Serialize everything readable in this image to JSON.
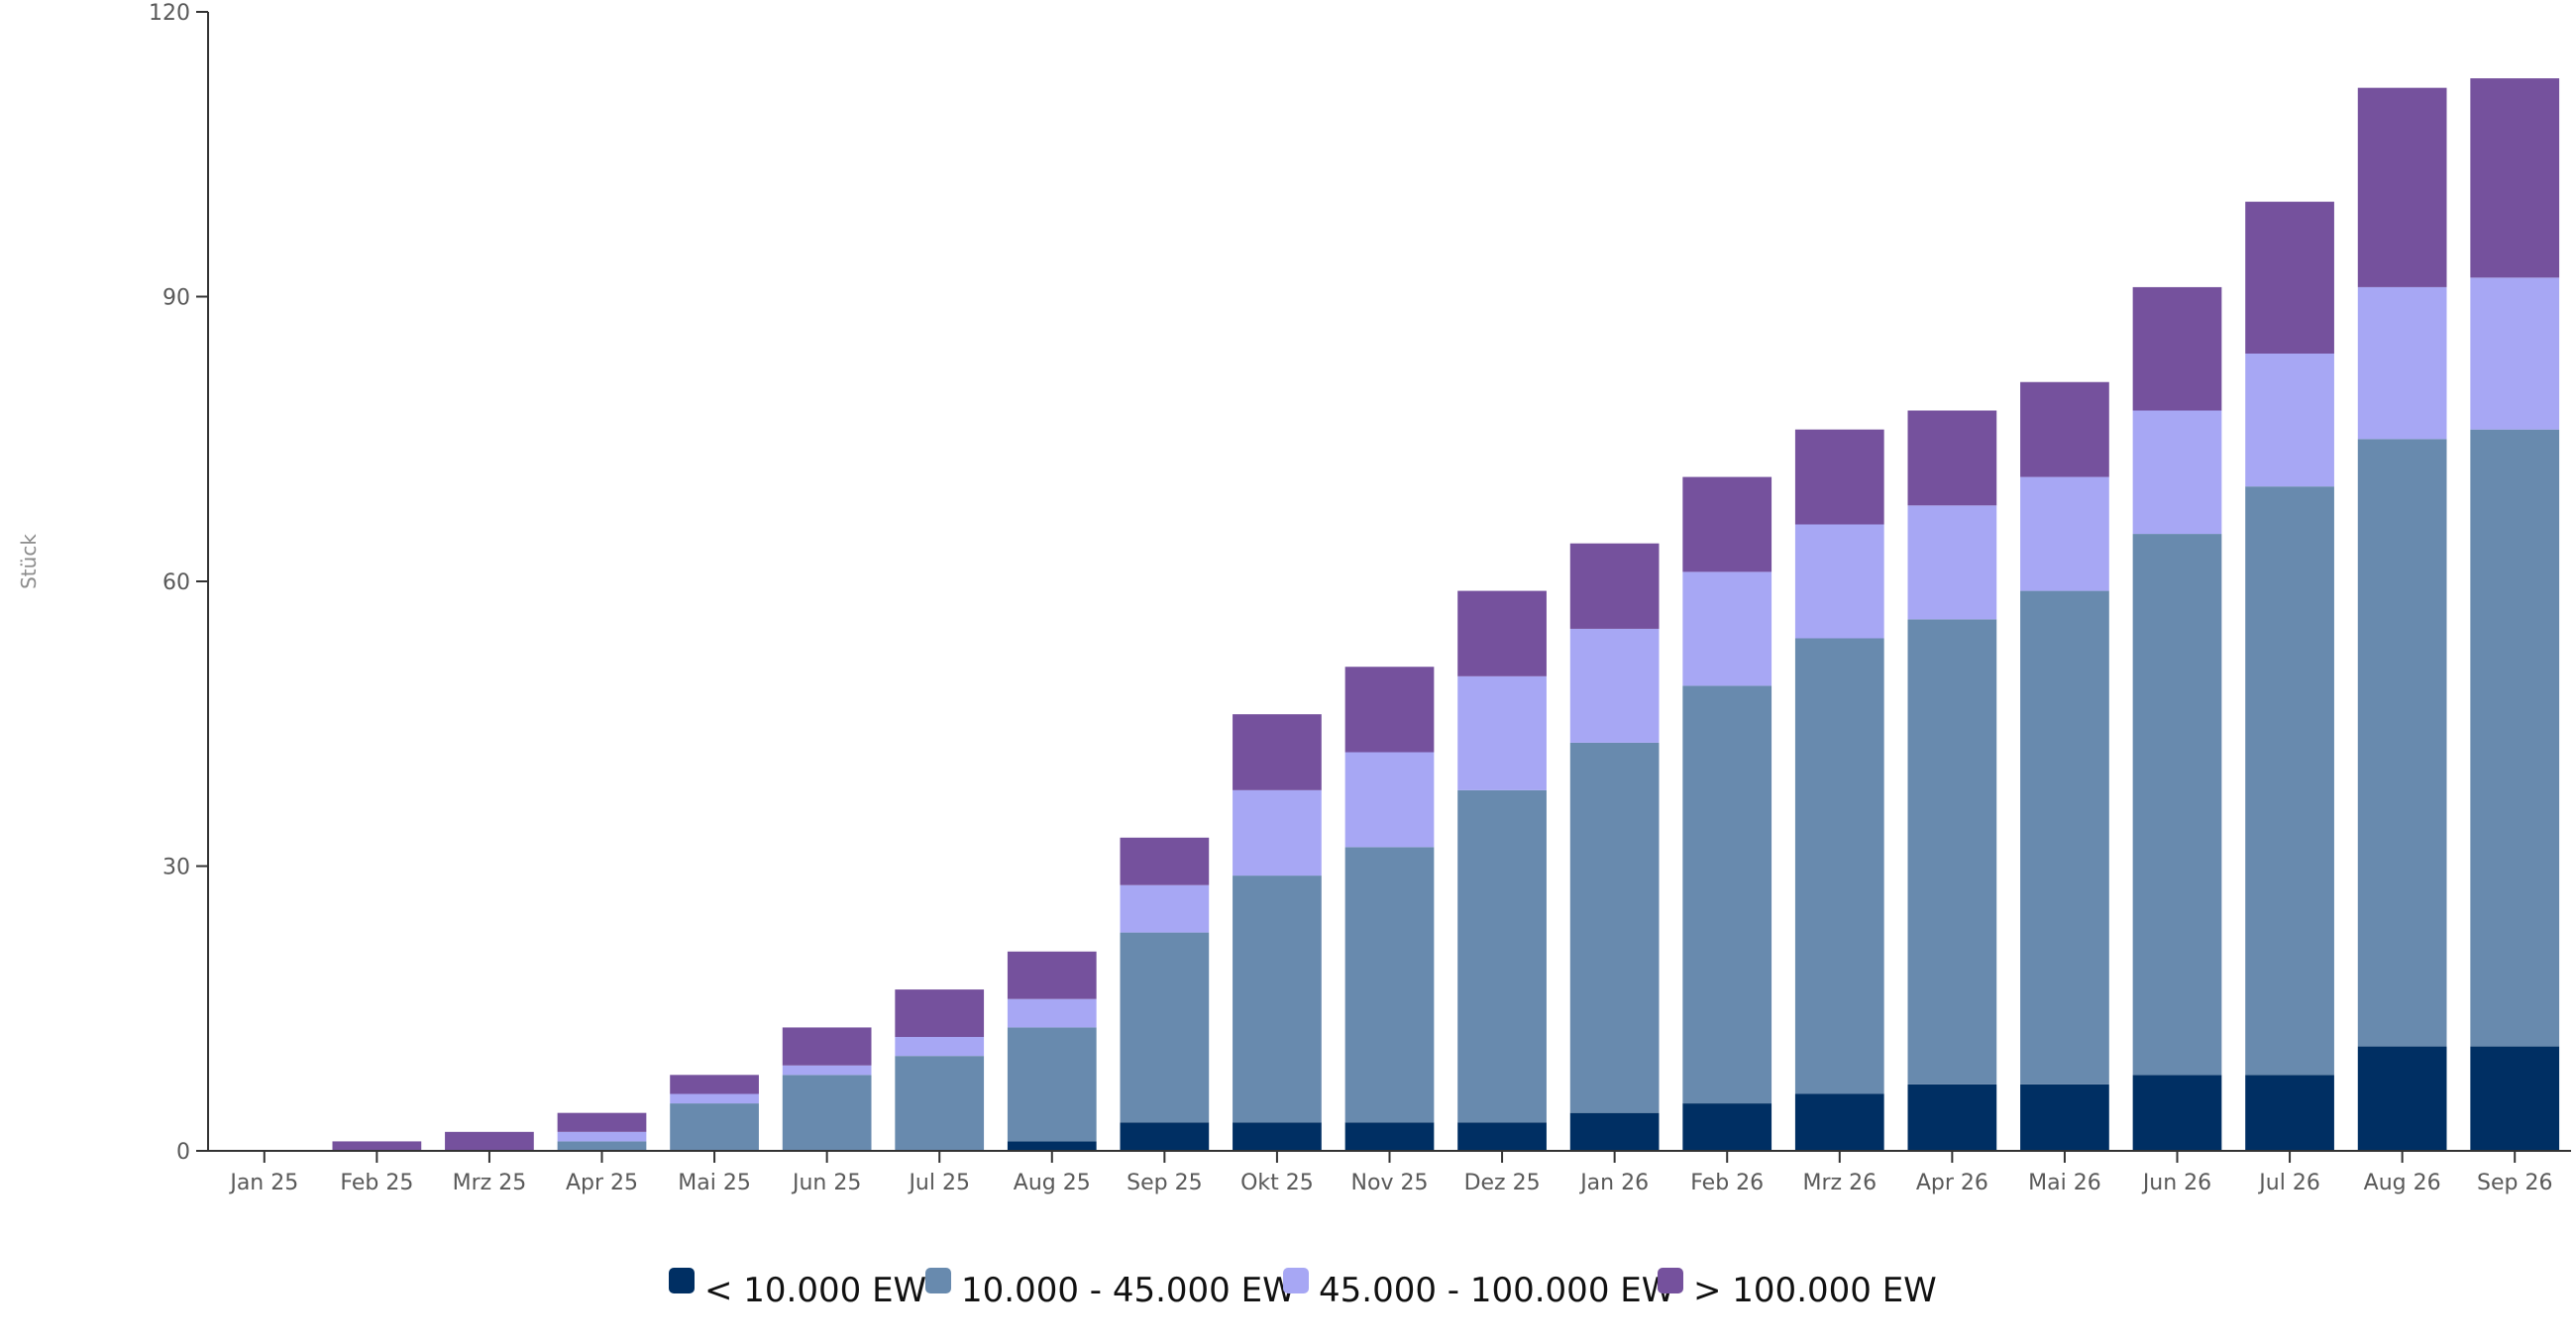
{
  "chart_data": {
    "type": "bar",
    "stacked": true,
    "title": "",
    "xlabel": "",
    "ylabel": "Stück",
    "ylim": [
      0,
      120
    ],
    "yticks": [
      0,
      30,
      60,
      90,
      120
    ],
    "grid": false,
    "legend_position": "bottom-center",
    "categories": [
      "Jan 25",
      "Feb 25",
      "Mrz 25",
      "Apr 25",
      "Mai 25",
      "Jun 25",
      "Jul 25",
      "Aug 25",
      "Sep 25",
      "Okt 25",
      "Nov 25",
      "Dez 25",
      "Jan 26",
      "Feb 26",
      "Mrz 26",
      "Apr 26",
      "Mai 26",
      "Jun 26",
      "Jul 26",
      "Aug 26",
      "Sep 26"
    ],
    "series": [
      {
        "name": "< 10.000 EW",
        "color": "#002f63",
        "values": [
          0,
          0,
          0,
          0,
          0,
          0,
          0,
          1,
          3,
          3,
          3,
          3,
          4,
          5,
          6,
          7,
          7,
          8,
          8,
          11,
          11
        ]
      },
      {
        "name": "10.000 - 45.000 EW",
        "color": "#688aae",
        "values": [
          0,
          0,
          0,
          1,
          5,
          8,
          10,
          12,
          20,
          26,
          29,
          35,
          39,
          44,
          48,
          49,
          52,
          57,
          62,
          64,
          65
        ]
      },
      {
        "name": "45.000 - 100.000 EW",
        "color": "#a7a7f4",
        "values": [
          0,
          0,
          0,
          1,
          1,
          1,
          2,
          3,
          5,
          9,
          10,
          12,
          12,
          12,
          12,
          12,
          12,
          13,
          14,
          16,
          16
        ]
      },
      {
        "name": "> 100.000 EW",
        "color": "#75519d",
        "values": [
          0,
          1,
          2,
          2,
          2,
          4,
          5,
          5,
          5,
          8,
          9,
          9,
          9,
          10,
          10,
          10,
          10,
          13,
          16,
          21,
          21
        ]
      }
    ]
  }
}
